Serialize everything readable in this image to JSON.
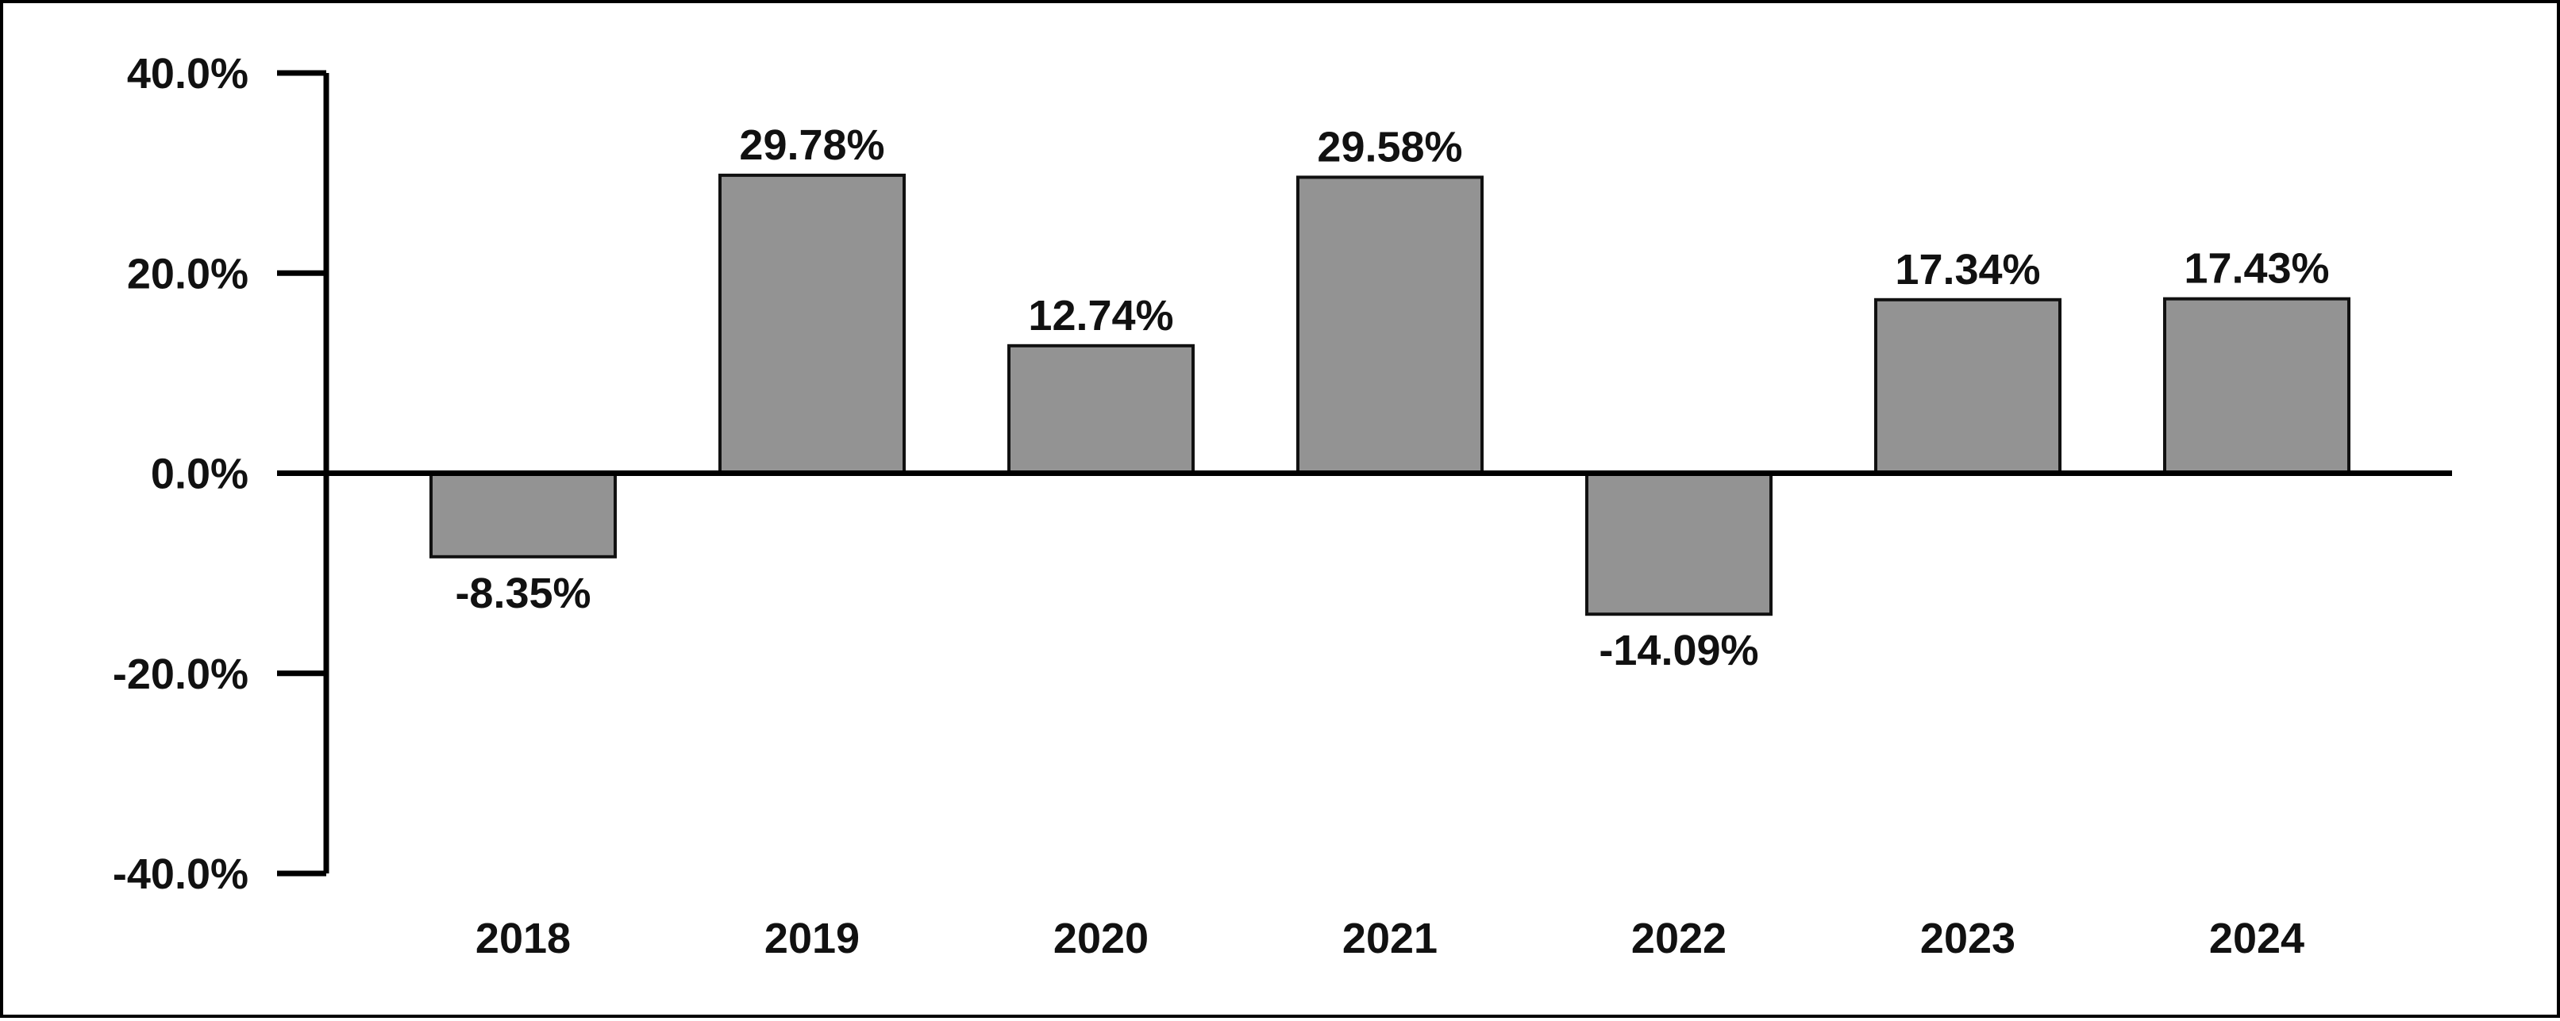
{
  "chart_data": {
    "type": "bar",
    "title": "",
    "xlabel": "",
    "ylabel": "",
    "categories": [
      "2018",
      "2019",
      "2020",
      "2021",
      "2022",
      "2023",
      "2024"
    ],
    "values": [
      -8.35,
      29.78,
      12.74,
      29.58,
      -14.09,
      17.34,
      17.43
    ],
    "value_labels": [
      "-8.35%",
      "29.78%",
      "12.74%",
      "29.58%",
      "-14.09%",
      "17.34%",
      "17.43%"
    ],
    "ylim": [
      -40,
      40
    ],
    "yticks": [
      40,
      20,
      0,
      -20,
      -40
    ],
    "ytick_labels": [
      "40.0%",
      "20.0%",
      "0.0%",
      "-20.0%",
      "-40.0%"
    ],
    "grid": false,
    "legend": "none",
    "colors": {
      "bar_fill": "#939393",
      "bar_stroke": "#111111",
      "axis": "#000000",
      "text": "#111111"
    }
  }
}
